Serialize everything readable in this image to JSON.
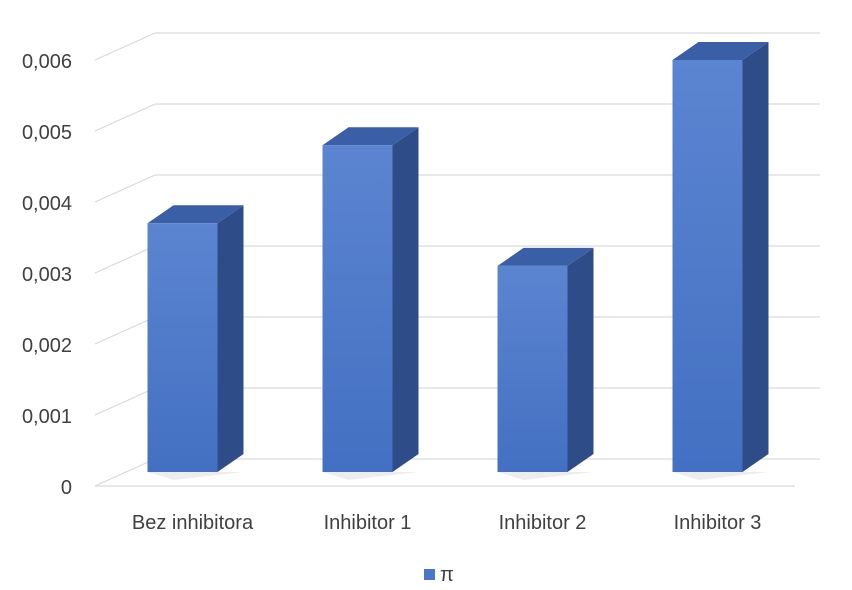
{
  "chart_data": {
    "type": "bar",
    "style": "3d-column",
    "categories": [
      "Bez inhibitora",
      "Inhibitor 1",
      "Inhibitor 2",
      "Inhibitor 3"
    ],
    "series": [
      {
        "name": "π",
        "values": [
          0.0037,
          0.0048,
          0.0031,
          0.006
        ]
      }
    ],
    "y_ticks": [
      "0",
      "0,001",
      "0,002",
      "0,003",
      "0,004",
      "0,005",
      "0,006"
    ],
    "ylim": [
      0,
      0.0066
    ],
    "title": "",
    "xlabel": "",
    "ylabel": "",
    "grid": true,
    "legend": "bottom",
    "colors": {
      "bar_front": "#4a76c8",
      "bar_top": "#3a5fa6",
      "bar_side": "#2e4c87",
      "grid": "#d9d9d9",
      "text": "#404040"
    }
  }
}
